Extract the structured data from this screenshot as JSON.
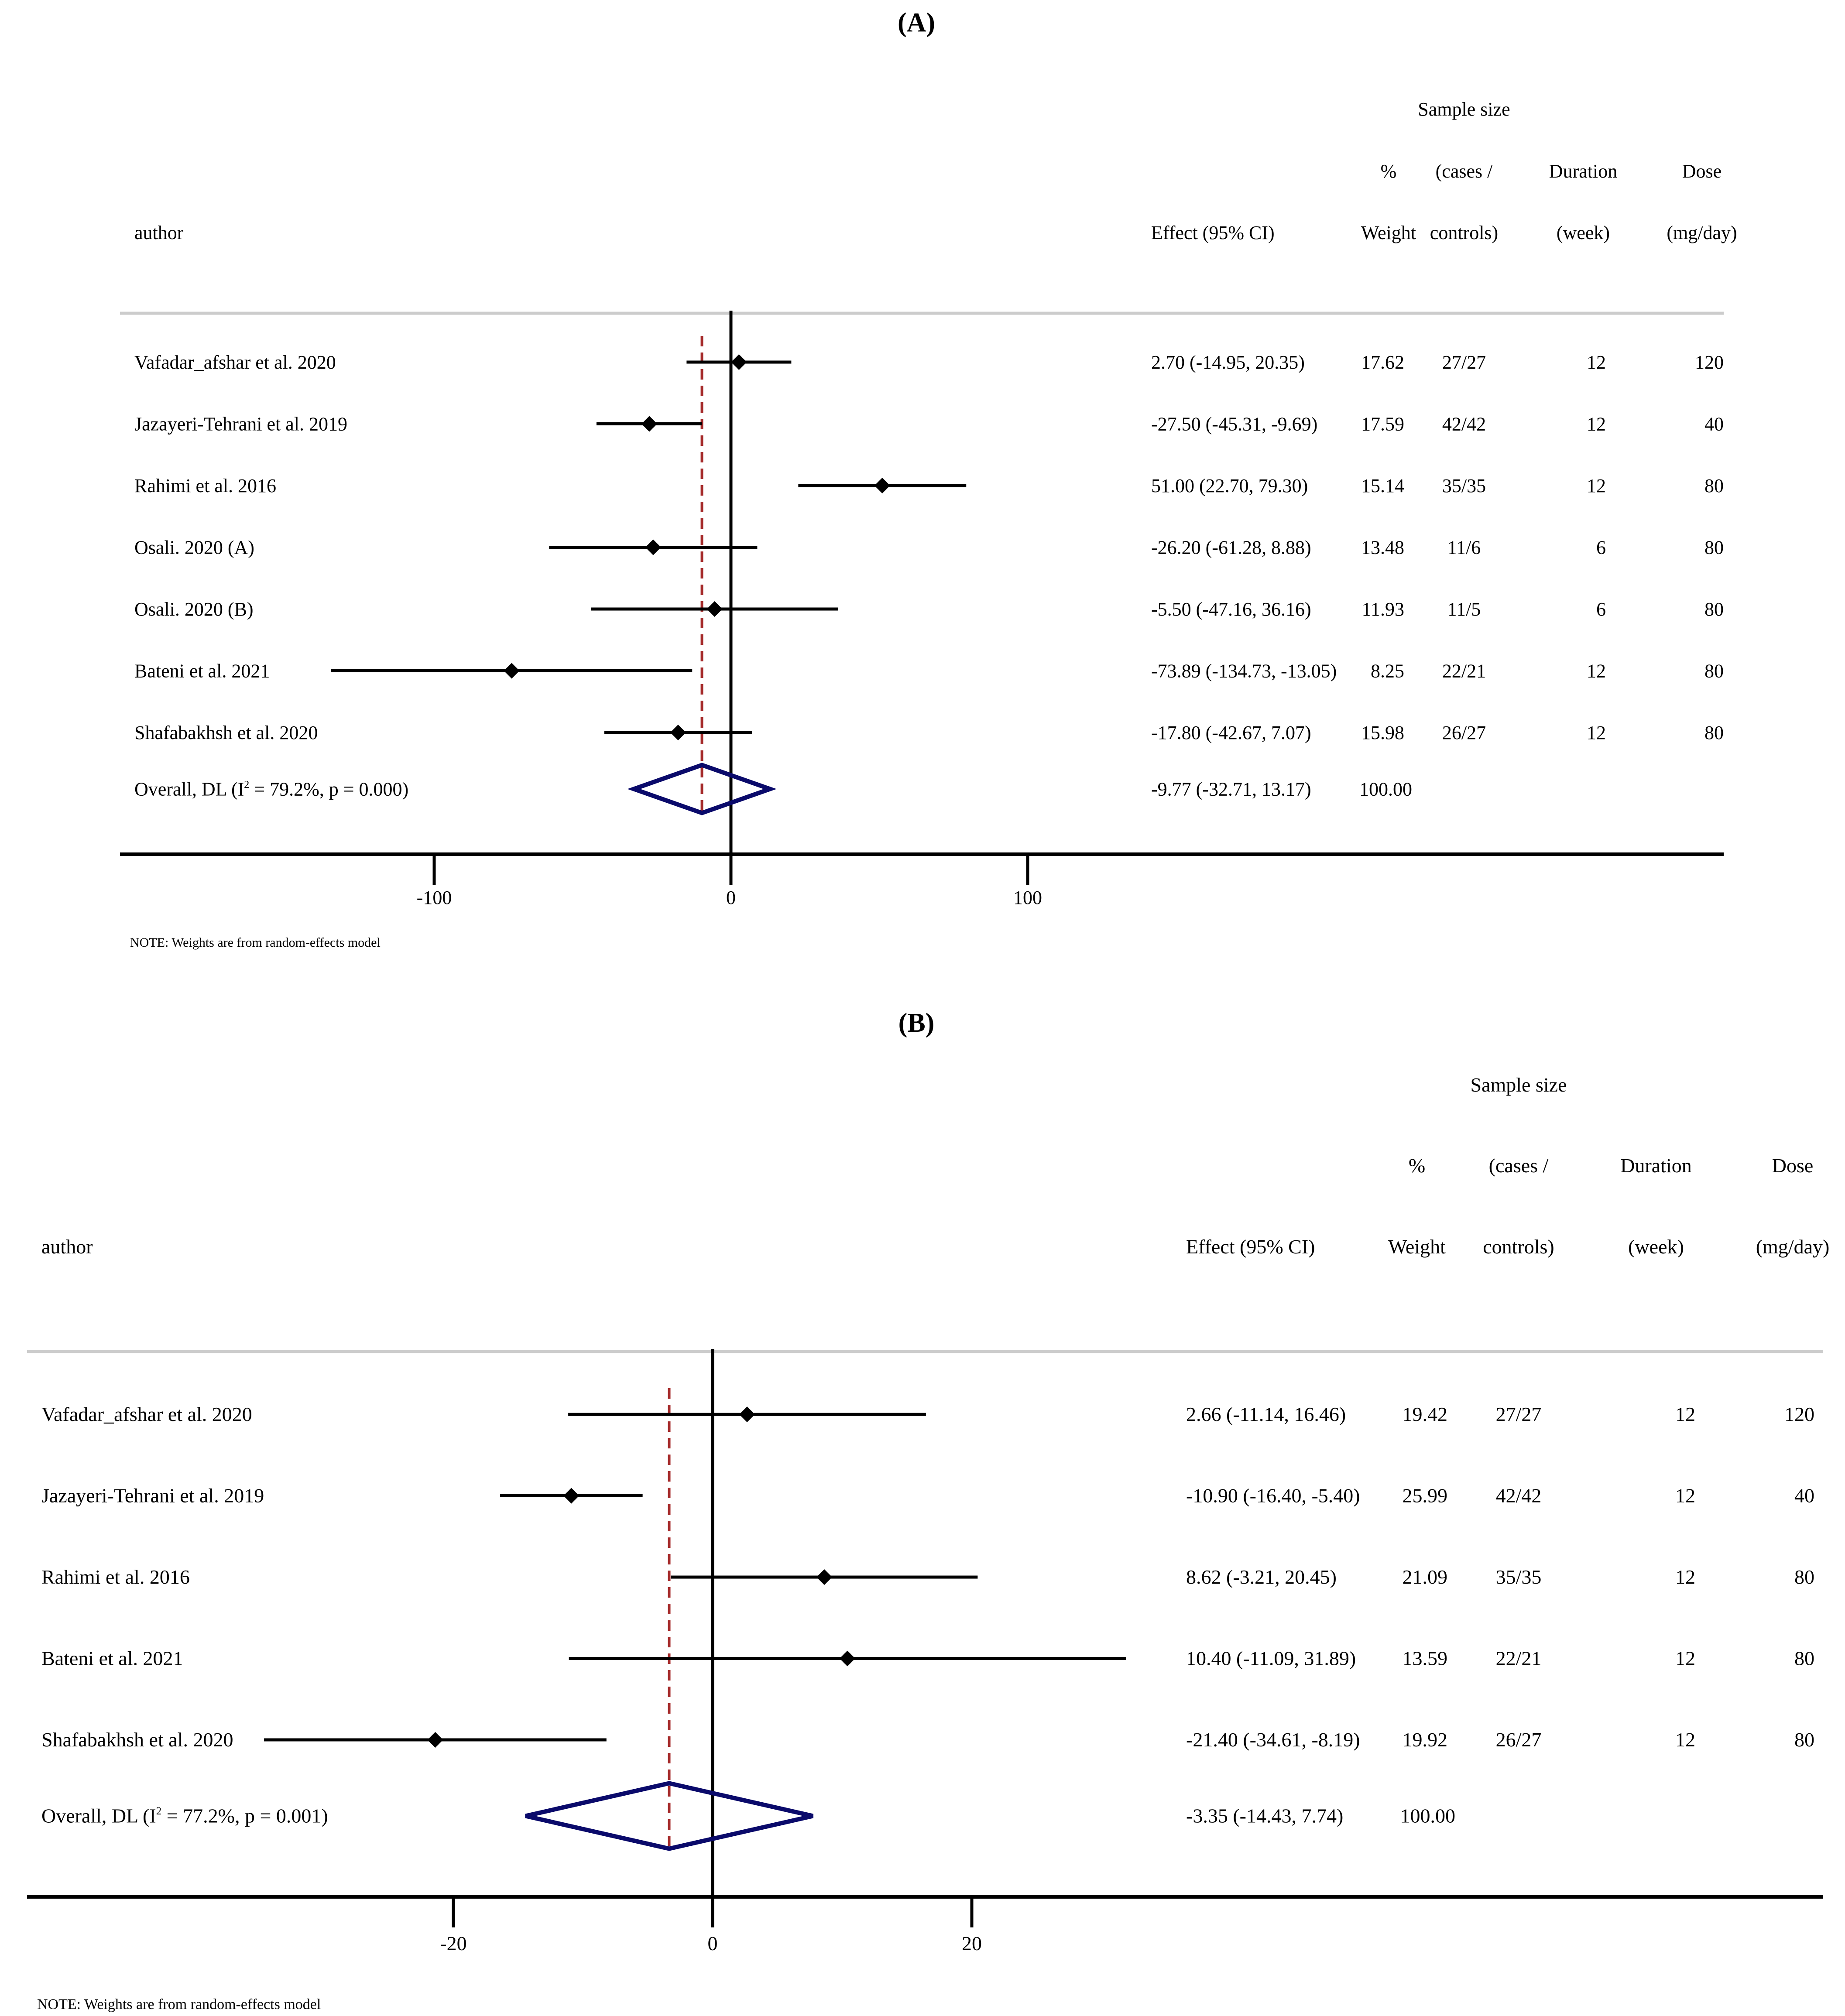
{
  "chart_data": [
    {
      "type": "forest",
      "panel_label": "(A)",
      "headers": {
        "author": "author",
        "effect": "Effect (95% CI)",
        "weight": [
          "%",
          "Weight"
        ],
        "sample": [
          "Sample size",
          "(cases /",
          "controls)"
        ],
        "duration": [
          "Duration",
          "(week)"
        ],
        "dose": [
          "Dose",
          "(mg/day)"
        ]
      },
      "studies": [
        {
          "author": "Vafadar_afshar et al. 2020",
          "es": 2.7,
          "lci": -14.95,
          "uci": 20.35,
          "ci_text": "2.70 (-14.95, 20.35)",
          "weight": "17.62",
          "sample": "27/27",
          "duration": "12",
          "dose": "120"
        },
        {
          "author": "Jazayeri-Tehrani et al. 2019",
          "es": -27.5,
          "lci": -45.31,
          "uci": -9.69,
          "ci_text": "-27.50 (-45.31, -9.69)",
          "weight": "17.59",
          "sample": "42/42",
          "duration": "12",
          "dose": "40"
        },
        {
          "author": "Rahimi et al. 2016",
          "es": 51.0,
          "lci": 22.7,
          "uci": 79.3,
          "ci_text": "51.00 (22.70, 79.30)",
          "weight": "15.14",
          "sample": "35/35",
          "duration": "12",
          "dose": "80"
        },
        {
          "author": "Osali. 2020 (A)",
          "es": -26.2,
          "lci": -61.28,
          "uci": 8.88,
          "ci_text": "-26.20 (-61.28, 8.88)",
          "weight": "13.48",
          "sample": "11/6",
          "duration": "6",
          "dose": "80"
        },
        {
          "author": "Osali. 2020 (B)",
          "es": -5.5,
          "lci": -47.16,
          "uci": 36.16,
          "ci_text": "-5.50 (-47.16, 36.16)",
          "weight": "11.93",
          "sample": "11/5",
          "duration": "6",
          "dose": "80"
        },
        {
          "author": "Bateni et al. 2021",
          "es": -73.89,
          "lci": -134.73,
          "uci": -13.05,
          "ci_text": "-73.89 (-134.73, -13.05)",
          "weight": "8.25",
          "sample": "22/21",
          "duration": "12",
          "dose": "80"
        },
        {
          "author": "Shafabakhsh et al. 2020",
          "es": -17.8,
          "lci": -42.67,
          "uci": 7.07,
          "ci_text": "-17.80 (-42.67, 7.07)",
          "weight": "15.98",
          "sample": "26/27",
          "duration": "12",
          "dose": "80"
        }
      ],
      "overall": {
        "label_pre": "Overall, DL (I",
        "label_sup": "2",
        "label_post": " = 79.2%, p = 0.000)",
        "es": -9.77,
        "lci": -32.71,
        "uci": 13.17,
        "ci_text": "-9.77 (-32.71, 13.17)",
        "weight": "100.00"
      },
      "x_ticks": [
        -100,
        0,
        100
      ],
      "x_tick_labels": [
        "-100",
        "0",
        "100"
      ],
      "xlim": [
        -205,
        335
      ],
      "null_line": 0,
      "note": "NOTE: Weights are from random-effects model"
    },
    {
      "type": "forest",
      "panel_label": "(B)",
      "headers": {
        "author": "author",
        "effect": "Effect (95% CI)",
        "weight": [
          "%",
          "Weight"
        ],
        "sample": [
          "Sample size",
          "(cases /",
          "controls)"
        ],
        "duration": [
          "Duration",
          "(week)"
        ],
        "dose": [
          "Dose",
          "(mg/day)"
        ]
      },
      "studies": [
        {
          "author": "Vafadar_afshar et al. 2020",
          "es": 2.66,
          "lci": -11.14,
          "uci": 16.46,
          "ci_text": "2.66 (-11.14, 16.46)",
          "weight": "19.42",
          "sample": "27/27",
          "duration": "12",
          "dose": "120"
        },
        {
          "author": "Jazayeri-Tehrani et al. 2019",
          "es": -10.9,
          "lci": -16.4,
          "uci": -5.4,
          "ci_text": "-10.90 (-16.40, -5.40)",
          "weight": "25.99",
          "sample": "42/42",
          "duration": "12",
          "dose": "40"
        },
        {
          "author": "Rahimi et al. 2016",
          "es": 8.62,
          "lci": -3.21,
          "uci": 20.45,
          "ci_text": "8.62 (-3.21, 20.45)",
          "weight": "21.09",
          "sample": "35/35",
          "duration": "12",
          "dose": "80"
        },
        {
          "author": "Bateni et al. 2021",
          "es": 10.4,
          "lci": -11.09,
          "uci": 31.89,
          "ci_text": "10.40 (-11.09, 31.89)",
          "weight": "13.59",
          "sample": "22/21",
          "duration": "12",
          "dose": "80"
        },
        {
          "author": "Shafabakhsh et al. 2020",
          "es": -21.4,
          "lci": -34.61,
          "uci": -8.19,
          "ci_text": "-21.40 (-34.61, -8.19)",
          "weight": "19.92",
          "sample": "26/27",
          "duration": "12",
          "dose": "80"
        }
      ],
      "overall": {
        "label_pre": "Overall, DL (I",
        "label_sup": "2",
        "label_post": " = 77.2%, p = 0.001)",
        "es": -3.35,
        "lci": -14.43,
        "uci": 7.74,
        "ci_text": "-3.35 (-14.43, 7.74)",
        "weight": "100.00"
      },
      "x_ticks": [
        -20,
        0,
        20
      ],
      "x_tick_labels": [
        "-20",
        "0",
        "20"
      ],
      "xlim": [
        -53,
        86
      ],
      "null_line": 0,
      "note": "NOTE: Weights are from random-effects model"
    }
  ],
  "colors": {
    "ink": "#000000",
    "overall_diamond": "#0a0a6b",
    "pooled_line": "#a52a2a",
    "separator": "#cccccc"
  }
}
